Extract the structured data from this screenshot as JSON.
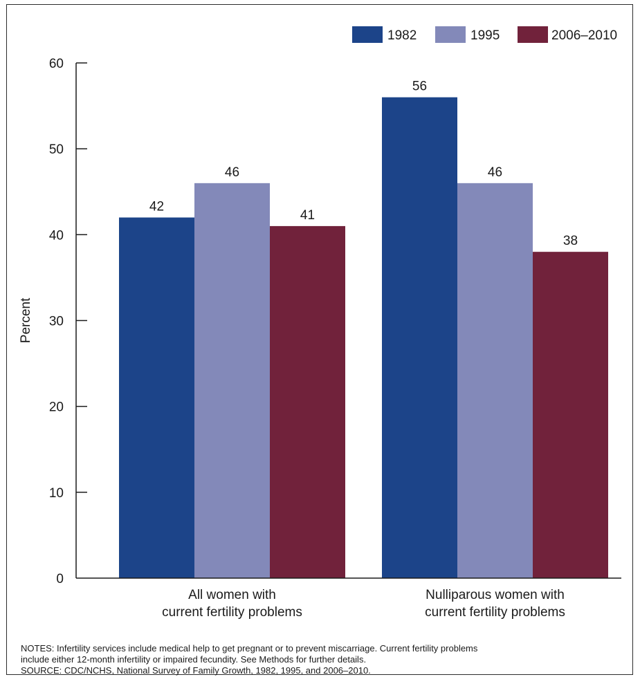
{
  "chart_data": {
    "type": "bar",
    "categories": [
      [
        "All women with",
        "current fertility problems"
      ],
      [
        "Nulliparous women with",
        "current fertility problems"
      ]
    ],
    "series": [
      {
        "name": "1982",
        "values": [
          42,
          56
        ],
        "color": "#1c4489"
      },
      {
        "name": "1995",
        "values": [
          46,
          46
        ],
        "color": "#8389b9"
      },
      {
        "name": "2006–2010",
        "values": [
          41,
          38
        ],
        "color": "#71223b"
      }
    ],
    "ylabel": "Percent",
    "ylim": [
      0,
      60
    ],
    "yticks": [
      0,
      10,
      20,
      30,
      40,
      50,
      60
    ],
    "data_labels": true,
    "grid": false,
    "legend_position": "top-right"
  },
  "notes": {
    "line1": "NOTES: Infertility services include medical help to get pregnant or to prevent miscarriage. Current fertility problems",
    "line2": "include either 12-month infertility or impaired fecundity. See Methods for further details.",
    "source": "SOURCE: CDC/NCHS, National Survey of Family Growth, 1982, 1995, and 2006–2010."
  }
}
